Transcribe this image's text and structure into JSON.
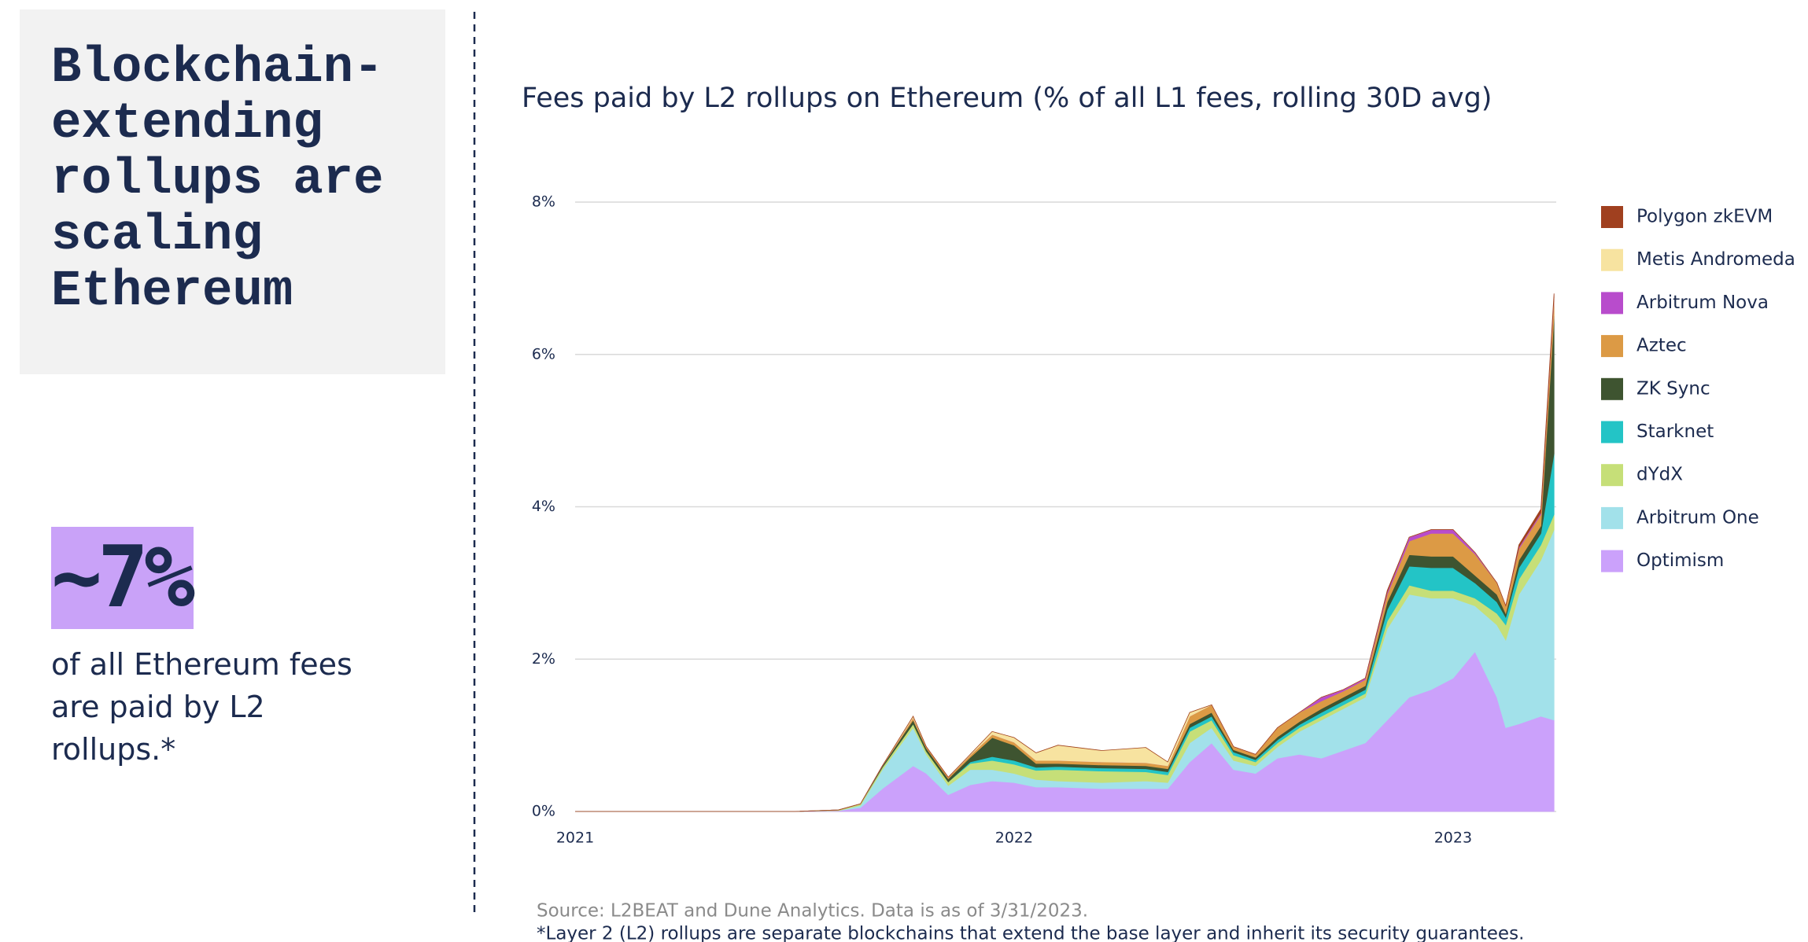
{
  "panel": {
    "title": "Blockchain-extending rollups are scaling Ethereum",
    "stat": "~7%",
    "stat_text": "of all Ethereum fees are paid by L2 rollups.*"
  },
  "chart_data": {
    "type": "stacked_area",
    "title": "Fees paid by L2 rollups on Ethereum (% of all L1 fees, rolling 30D avg)",
    "source": "Source: L2BEAT and Dune Analytics. Data is as of 3/31/2023.",
    "note": "*Layer 2 (L2) rollups are separate blockchains that extend the base layer and inherit its security guarantees.",
    "x": [
      2021.0,
      2021.5,
      2021.6,
      2021.65,
      2021.7,
      2021.77,
      2021.8,
      2021.85,
      2021.9,
      2021.95,
      2022.0,
      2022.05,
      2022.1,
      2022.2,
      2022.3,
      2022.35,
      2022.4,
      2022.45,
      2022.5,
      2022.55,
      2022.6,
      2022.65,
      2022.7,
      2022.75,
      2022.8,
      2022.85,
      2022.9,
      2022.95,
      2023.0,
      2023.05,
      2023.1,
      2023.12,
      2023.15,
      2023.2,
      2023.23
    ],
    "xlim": [
      2021,
      2023.235
    ],
    "xticks": [
      2021,
      2022,
      2023
    ],
    "ylim": [
      0,
      8
    ],
    "yticks": [
      {
        "value": 0,
        "label": "0%"
      },
      {
        "value": 2,
        "label": "2%"
      },
      {
        "value": 4,
        "label": "4%"
      },
      {
        "value": 6,
        "label": "6%"
      },
      {
        "value": 8,
        "label": "8%"
      }
    ],
    "grid": true,
    "legend": "right",
    "series": [
      {
        "name": "Optimism",
        "color": "#cba1fb",
        "values": [
          0,
          0,
          0.01,
          0.05,
          0.3,
          0.6,
          0.5,
          0.22,
          0.35,
          0.4,
          0.38,
          0.32,
          0.32,
          0.3,
          0.3,
          0.3,
          0.65,
          0.9,
          0.55,
          0.5,
          0.7,
          0.75,
          0.7,
          0.8,
          0.9,
          1.2,
          1.5,
          1.6,
          1.75,
          2.1,
          1.5,
          1.1,
          1.15,
          1.25,
          1.2
        ]
      },
      {
        "name": "Arbitrum One",
        "color": "#a2e1ea",
        "values": [
          0,
          0,
          0,
          0.03,
          0.25,
          0.5,
          0.25,
          0.12,
          0.2,
          0.15,
          0.12,
          0.1,
          0.08,
          0.08,
          0.1,
          0.08,
          0.25,
          0.2,
          0.12,
          0.1,
          0.15,
          0.3,
          0.5,
          0.55,
          0.6,
          1.2,
          1.35,
          1.2,
          1.05,
          0.6,
          0.95,
          1.15,
          1.7,
          2.05,
          2.5
        ]
      },
      {
        "name": "dYdX",
        "color": "#c6df78",
        "values": [
          0,
          0,
          0.01,
          0.02,
          0.03,
          0.05,
          0.04,
          0.05,
          0.08,
          0.12,
          0.12,
          0.12,
          0.15,
          0.15,
          0.12,
          0.1,
          0.15,
          0.1,
          0.07,
          0.05,
          0.05,
          0.05,
          0.05,
          0.05,
          0.05,
          0.1,
          0.12,
          0.1,
          0.1,
          0.1,
          0.15,
          0.2,
          0.2,
          0.2,
          0.2
        ]
      },
      {
        "name": "Starknet",
        "color": "#23c4c6",
        "values": [
          0,
          0,
          0,
          0,
          0,
          0,
          0,
          0,
          0.02,
          0.05,
          0.05,
          0.04,
          0.04,
          0.04,
          0.04,
          0.04,
          0.05,
          0.05,
          0.04,
          0.03,
          0.04,
          0.04,
          0.05,
          0.05,
          0.05,
          0.15,
          0.25,
          0.3,
          0.3,
          0.2,
          0.15,
          0.1,
          0.15,
          0.15,
          0.8
        ]
      },
      {
        "name": "ZK Sync",
        "color": "#3e5430",
        "values": [
          0,
          0,
          0,
          0,
          0.02,
          0.05,
          0.04,
          0.04,
          0.06,
          0.25,
          0.2,
          0.05,
          0.04,
          0.04,
          0.04,
          0.04,
          0.05,
          0.05,
          0.03,
          0.03,
          0.04,
          0.04,
          0.05,
          0.05,
          0.05,
          0.1,
          0.15,
          0.15,
          0.15,
          0.1,
          0.1,
          0.05,
          0.1,
          0.1,
          1.8
        ]
      },
      {
        "name": "Aztec",
        "color": "#dc9a45",
        "values": [
          0,
          0,
          0,
          0,
          0,
          0.03,
          0.02,
          0.02,
          0.03,
          0.04,
          0.04,
          0.04,
          0.04,
          0.04,
          0.04,
          0.04,
          0.1,
          0.1,
          0.04,
          0.04,
          0.12,
          0.12,
          0.1,
          0.08,
          0.08,
          0.1,
          0.18,
          0.3,
          0.3,
          0.28,
          0.15,
          0.1,
          0.15,
          0.15,
          0.2
        ]
      },
      {
        "name": "Arbitrum Nova",
        "color": "#b84ccc",
        "values": [
          0,
          0,
          0,
          0,
          0,
          0,
          0,
          0,
          0,
          0,
          0,
          0,
          0,
          0,
          0,
          0,
          0,
          0,
          0,
          0,
          0,
          0,
          0.05,
          0.02,
          0.02,
          0.03,
          0.05,
          0.05,
          0.05,
          0.02,
          0,
          0,
          0.02,
          0.02,
          0.02
        ]
      },
      {
        "name": "Metis Andromeda",
        "color": "#f7e3a0",
        "values": [
          0,
          0,
          0,
          0,
          0,
          0.02,
          0,
          0,
          0.01,
          0.04,
          0.06,
          0.1,
          0.2,
          0.15,
          0.2,
          0.05,
          0.05,
          0,
          0,
          0,
          0,
          0,
          0,
          0,
          0,
          0,
          0,
          0,
          0,
          0,
          0,
          0,
          0,
          0,
          0.03
        ]
      },
      {
        "name": "Polygon zkEVM",
        "color": "#a0401f",
        "values": [
          0,
          0,
          0,
          0,
          0,
          0,
          0,
          0,
          0,
          0,
          0,
          0,
          0,
          0,
          0,
          0,
          0,
          0,
          0,
          0,
          0,
          0,
          0,
          0,
          0,
          0.02,
          0,
          0,
          0,
          0,
          0,
          0,
          0.03,
          0.05,
          0.05
        ]
      }
    ]
  }
}
